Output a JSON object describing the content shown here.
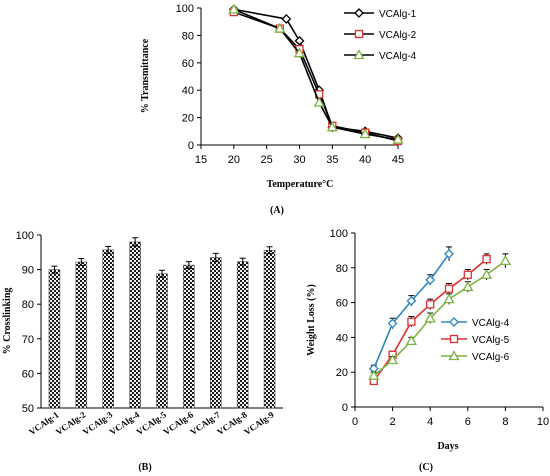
{
  "chart_data": [
    {
      "type": "line",
      "panel_label": "(A)",
      "xlabel": "Temperature°C",
      "ylabel": "% Transmittance",
      "xlim": [
        15,
        45
      ],
      "ylim": [
        0,
        100
      ],
      "xticks": [
        15,
        20,
        25,
        30,
        35,
        40,
        45
      ],
      "yticks": [
        0,
        20,
        40,
        60,
        80,
        100
      ],
      "legend_position": "top-right",
      "grid": false,
      "series": [
        {
          "name": "VCAlg-1",
          "marker": "diamond",
          "color": "#000000",
          "x": [
            20,
            28,
            30,
            33,
            35,
            40,
            45
          ],
          "y": [
            99,
            92,
            76,
            40,
            13,
            10,
            5
          ]
        },
        {
          "name": "VCAlg-2",
          "marker": "square",
          "color": "#e03030",
          "x": [
            20,
            27,
            30,
            33,
            35,
            40,
            45
          ],
          "y": [
            97,
            85,
            70,
            37,
            14,
            9,
            3
          ]
        },
        {
          "name": "VCAlg-4",
          "marker": "triangle",
          "color": "#7cb342",
          "x": [
            20,
            27,
            30,
            33,
            35,
            40,
            45
          ],
          "y": [
            99,
            85,
            67,
            31,
            13,
            8,
            4
          ]
        }
      ]
    },
    {
      "type": "bar",
      "panel_label": "(B)",
      "xlabel": "",
      "ylabel": "% Crosslinking",
      "ylim": [
        50,
        100
      ],
      "yticks": [
        50,
        60,
        70,
        80,
        90,
        100
      ],
      "categories": [
        "VCAlg-1",
        "VCAlg-2",
        "VCAlg-3",
        "VCAlg-4",
        "VCAlg-5",
        "VCAlg-6",
        "VCAlg-7",
        "VCAlg-8",
        "VCAlg-9"
      ],
      "values": [
        90,
        92.2,
        95.7,
        98,
        88.8,
        91.3,
        93.5,
        92.3,
        95.6
      ],
      "errors": [
        1.0,
        1.0,
        1.0,
        1.2,
        1.0,
        1.0,
        1.2,
        1.0,
        1.0
      ],
      "grid": false
    },
    {
      "type": "line",
      "panel_label": "(C)",
      "xlabel": "Days",
      "ylabel": "Weight Loss (%)",
      "xlim": [
        0,
        10
      ],
      "ylim": [
        0,
        100
      ],
      "xticks": [
        0,
        2,
        4,
        6,
        8,
        10
      ],
      "yticks": [
        0,
        20,
        40,
        60,
        80,
        100
      ],
      "legend_position": "center-right",
      "grid": false,
      "series": [
        {
          "name": "VCAlg-4",
          "marker": "diamond",
          "color": "#2e86c1",
          "x": [
            1,
            2,
            3,
            4,
            5
          ],
          "y": [
            22,
            48,
            61,
            73,
            88
          ],
          "err": [
            2,
            3,
            3,
            3,
            4
          ]
        },
        {
          "name": "VCAlg-5",
          "marker": "square",
          "color": "#e03030",
          "x": [
            1,
            2,
            3,
            4,
            5,
            6,
            7
          ],
          "y": [
            15,
            30,
            49,
            59,
            68,
            76,
            85
          ],
          "err": [
            2,
            2,
            3,
            3,
            3,
            3,
            3
          ]
        },
        {
          "name": "VCAlg-6",
          "marker": "triangle",
          "color": "#7cb342",
          "x": [
            1,
            2,
            3,
            4,
            5,
            6,
            7,
            8
          ],
          "y": [
            18,
            27,
            38,
            51,
            62,
            69,
            76,
            84
          ],
          "err": [
            2,
            2,
            2,
            3,
            3,
            3,
            3,
            4
          ]
        }
      ]
    }
  ]
}
